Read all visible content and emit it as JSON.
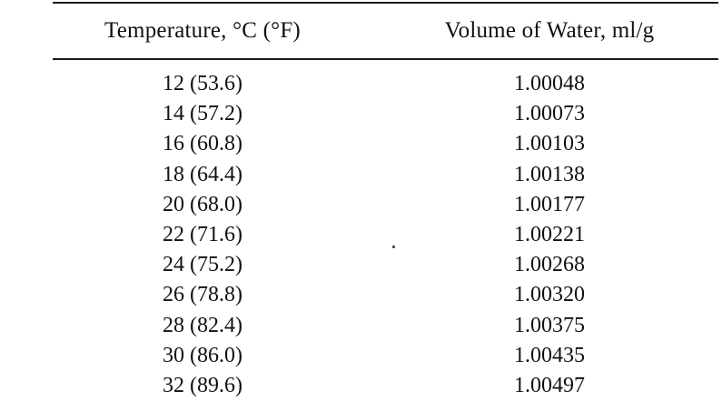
{
  "table": {
    "headers": {
      "temperature": "Temperature, °C (°F)",
      "volume": "Volume of Water, ml/g"
    },
    "rows": [
      {
        "temperature": "12 (53.6)",
        "volume": "1.00048"
      },
      {
        "temperature": "14 (57.2)",
        "volume": "1.00073"
      },
      {
        "temperature": "16 (60.8)",
        "volume": "1.00103"
      },
      {
        "temperature": "18 (64.4)",
        "volume": "1.00138"
      },
      {
        "temperature": "20 (68.0)",
        "volume": "1.00177"
      },
      {
        "temperature": "22 (71.6)",
        "volume": "1.00221"
      },
      {
        "temperature": "24 (75.2)",
        "volume": "1.00268"
      },
      {
        "temperature": "26 (78.8)",
        "volume": "1.00320"
      },
      {
        "temperature": "28 (82.4)",
        "volume": "1.00375"
      },
      {
        "temperature": "30 (86.0)",
        "volume": "1.00435"
      },
      {
        "temperature": "32 (89.6)",
        "volume": "1.00497"
      }
    ]
  }
}
